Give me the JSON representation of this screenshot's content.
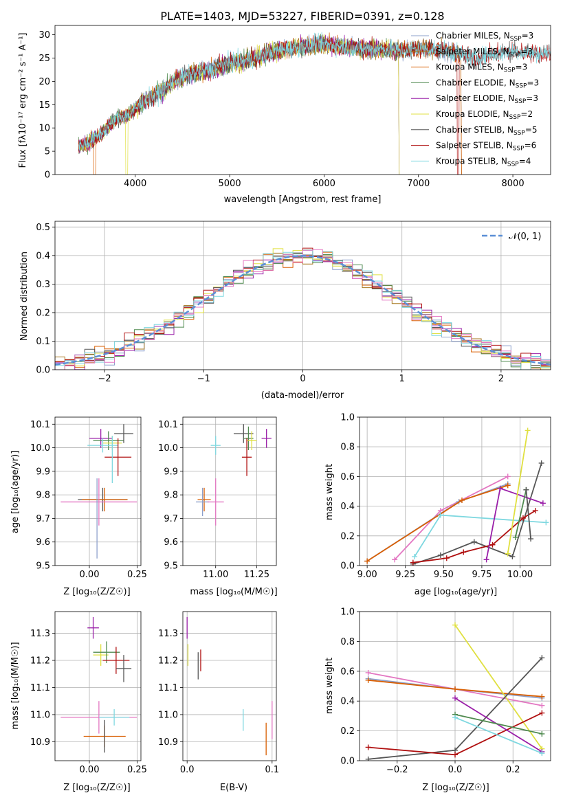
{
  "chart_data": [
    {
      "type": "line",
      "title": "PLATE=1403, MJD=53227, FIBERID=0391, z=0.128",
      "xlabel": "wavelength [Angstrom, rest frame]",
      "ylabel": "Flux [fλ10⁻¹⁷ erg cm⁻² s⁻¹ A⁻¹]",
      "xlim": [
        3150,
        8400
      ],
      "ylim": [
        0,
        32
      ],
      "xticks": [
        4000,
        5000,
        6000,
        7000,
        8000
      ],
      "yticks": [
        0,
        5,
        10,
        15,
        20,
        25,
        30
      ],
      "spectrum_knots": [
        [
          3400,
          6
        ],
        [
          3500,
          6.8
        ],
        [
          3550,
          7.5
        ],
        [
          3650,
          9
        ],
        [
          3800,
          12
        ],
        [
          3950,
          13
        ],
        [
          4000,
          14
        ],
        [
          4100,
          16
        ],
        [
          4200,
          17
        ],
        [
          4300,
          18
        ],
        [
          4400,
          20
        ],
        [
          4600,
          21.5
        ],
        [
          4800,
          22.5
        ],
        [
          5000,
          24
        ],
        [
          5200,
          24.5
        ],
        [
          5400,
          26
        ],
        [
          5600,
          27
        ],
        [
          5800,
          27.5
        ],
        [
          6000,
          28
        ],
        [
          6200,
          27.5
        ],
        [
          6400,
          27
        ],
        [
          6600,
          27
        ],
        [
          6800,
          26.5
        ],
        [
          7000,
          27
        ],
        [
          7200,
          27
        ],
        [
          7400,
          26
        ],
        [
          7600,
          25
        ],
        [
          7800,
          26
        ],
        [
          8000,
          26.5
        ],
        [
          8200,
          26
        ]
      ],
      "series": [
        {
          "name": "Chabrier MILES, N_SSP=3",
          "color": "#8da0cb",
          "xmax": 7450,
          "drop": null
        },
        {
          "name": "Salpeter MILES, N_SSP=3",
          "color": "#a6761d",
          "xmax": 7450,
          "drop": null
        },
        {
          "name": "Kroupa MILES, N_SSP=3",
          "color": "#d95f02",
          "xmax": 7450,
          "drop": [
            3560,
            3580
          ]
        },
        {
          "name": "Chabrier ELODIE, N_SSP=3",
          "color": "#4f8a4f",
          "xmax": 6790,
          "drop": null
        },
        {
          "name": "Salpeter ELODIE, N_SSP=3",
          "color": "#9a1fa8",
          "xmax": 6790,
          "drop": null
        },
        {
          "name": "Kroupa ELODIE, N_SSP=2",
          "color": "#e0e040",
          "xmax": 6790,
          "drop": [
            3900,
            3920
          ]
        },
        {
          "name": "Chabrier STELIB, N_SSP=5",
          "color": "#555555",
          "xmax": 8400,
          "drop": null
        },
        {
          "name": "Salpeter STELIB, N_SSP=6",
          "color": "#b01010",
          "xmax": 8400,
          "drop": [
            7410,
            7430
          ]
        },
        {
          "name": "Kroupa STELIB, N_SSP=4",
          "color": "#7fd8e0",
          "xmax": 8400,
          "drop": null
        }
      ]
    },
    {
      "type": "area",
      "xlabel": "(data-model)/error",
      "ylabel": "Normed distribution",
      "xlim": [
        -2.5,
        2.5
      ],
      "ylim": [
        0,
        0.52
      ],
      "xticks": [
        -2,
        -1,
        0,
        1,
        2
      ],
      "yticks": [
        0.0,
        0.1,
        0.2,
        0.3,
        0.4,
        0.5
      ],
      "bin_width": 0.1,
      "reference_label": "𝒩(0, 1)",
      "reference_color": "#5b8fd6",
      "histogram_colors": [
        "#8da0cb",
        "#a6761d",
        "#d95f02",
        "#4f8a4f",
        "#9a1fa8",
        "#e0e040",
        "#555555",
        "#b01010",
        "#7fd8e0",
        "#e377c2"
      ]
    },
    {
      "type": "scatter",
      "xlabel": "Z [log₁₀(Z/Z☉)]",
      "ylabel": "age  [log₁₀(age/yr)]",
      "xlim": [
        -0.18,
        0.27
      ],
      "ylim": [
        9.5,
        10.13
      ],
      "xticks": [
        0.0,
        0.25
      ],
      "yticks": [
        9.5,
        9.6,
        9.7,
        9.8,
        9.9,
        10.0,
        10.1
      ],
      "points": [
        {
          "x": 0.06,
          "y": 10.04,
          "xerr": 0.06,
          "yerr": 0.04,
          "color": "#9a1fa8"
        },
        {
          "x": 0.1,
          "y": 10.03,
          "xerr": 0.08,
          "yerr": 0.04,
          "color": "#4f8a4f"
        },
        {
          "x": 0.12,
          "y": 10.02,
          "xerr": 0.05,
          "yerr": 0.03,
          "color": "#e0e040"
        },
        {
          "x": 0.18,
          "y": 10.06,
          "xerr": 0.05,
          "yerr": 0.04,
          "color": "#555555"
        },
        {
          "x": 0.07,
          "y": 10.01,
          "xerr": 0.08,
          "yerr": 0.03,
          "color": "#7fd8e0"
        },
        {
          "x": 0.15,
          "y": 9.96,
          "xerr": 0.07,
          "yerr": 0.08,
          "color": "#b01010"
        },
        {
          "x": 0.12,
          "y": 9.95,
          "xerr": 0.0,
          "yerr": 0.1,
          "color": "#7fd8e0"
        },
        {
          "x": 0.07,
          "y": 9.78,
          "xerr": 0.13,
          "yerr": 0.05,
          "color": "#555555"
        },
        {
          "x": 0.08,
          "y": 9.78,
          "xerr": 0.12,
          "yerr": 0.05,
          "color": "#d95f02"
        },
        {
          "x": 0.05,
          "y": 9.77,
          "xerr": 0.2,
          "yerr": 0.1,
          "color": "#e377c2"
        },
        {
          "x": 0.04,
          "y": 9.7,
          "xerr": 0.0,
          "yerr": 0.17,
          "color": "#8da0cb"
        }
      ]
    },
    {
      "type": "scatter",
      "xlabel": "mass [log₁₀(M/M☉)]",
      "ylabel": "",
      "xlim": [
        10.8,
        11.37
      ],
      "ylim": [
        9.5,
        10.13
      ],
      "xticks": [
        11.0,
        11.25
      ],
      "yticks": [
        9.5,
        9.6,
        9.7,
        9.8,
        9.9,
        10.0,
        10.1
      ],
      "points": [
        {
          "x": 11.17,
          "y": 10.06,
          "xerr": 0.06,
          "yerr": 0.04,
          "color": "#555555"
        },
        {
          "x": 11.2,
          "y": 10.04,
          "xerr": 0.03,
          "yerr": 0.05,
          "color": "#4f8a4f"
        },
        {
          "x": 11.22,
          "y": 10.03,
          "xerr": 0.03,
          "yerr": 0.04,
          "color": "#e0e040"
        },
        {
          "x": 11.31,
          "y": 10.04,
          "xerr": 0.03,
          "yerr": 0.04,
          "color": "#9a1fa8"
        },
        {
          "x": 11.0,
          "y": 10.01,
          "xerr": 0.03,
          "yerr": 0.04,
          "color": "#7fd8e0"
        },
        {
          "x": 11.19,
          "y": 9.96,
          "xerr": 0.03,
          "yerr": 0.08,
          "color": "#b01010"
        },
        {
          "x": 10.93,
          "y": 9.78,
          "xerr": 0.04,
          "yerr": 0.05,
          "color": "#d95f02"
        },
        {
          "x": 10.92,
          "y": 9.77,
          "xerr": 0.04,
          "yerr": 0.06,
          "color": "#8da0cb"
        },
        {
          "x": 11.0,
          "y": 9.77,
          "xerr": 0.05,
          "yerr": 0.1,
          "color": "#e377c2"
        }
      ]
    },
    {
      "type": "line",
      "xlabel": "age  [log₁₀(age/yr)]",
      "ylabel": "mass weight",
      "xlim": [
        8.95,
        10.2
      ],
      "ylim": [
        0,
        1.0
      ],
      "xticks": [
        9.0,
        9.25,
        9.5,
        9.75,
        10.0
      ],
      "yticks": [
        0.0,
        0.2,
        0.4,
        0.6,
        0.8,
        1.0
      ],
      "series": [
        {
          "color": "#e377c2",
          "x": [
            9.18,
            9.48,
            9.92
          ],
          "y": [
            0.04,
            0.37,
            0.6
          ]
        },
        {
          "color": "#8da0cb",
          "x": [
            9.0,
            9.6,
            9.92
          ],
          "y": [
            0.03,
            0.43,
            0.55
          ]
        },
        {
          "color": "#d95f02",
          "x": [
            9.0,
            9.62,
            9.92
          ],
          "y": [
            0.03,
            0.44,
            0.54
          ]
        },
        {
          "color": "#7fd8e0",
          "x": [
            9.31,
            9.48,
            10.17
          ],
          "y": [
            0.06,
            0.34,
            0.29
          ]
        },
        {
          "color": "#555555",
          "x": [
            9.3,
            9.48,
            9.7,
            9.95,
            10.14
          ],
          "y": [
            0.01,
            0.07,
            0.16,
            0.06,
            0.69
          ]
        },
        {
          "color": "#b01010",
          "x": [
            9.3,
            9.52,
            9.63,
            9.82,
            10.02,
            10.1
          ],
          "y": [
            0.02,
            0.05,
            0.09,
            0.14,
            0.32,
            0.37
          ]
        },
        {
          "color": "#9a1fa8",
          "x": [
            9.78,
            9.87,
            10.15
          ],
          "y": [
            0.04,
            0.52,
            0.42
          ]
        },
        {
          "color": "#e0e040",
          "x": [
            9.92,
            10.05
          ],
          "y": [
            0.08,
            0.91
          ]
        },
        {
          "color": "#4f8a4f",
          "x": [
            9.97,
            10.04
          ],
          "y": [
            0.19,
            0.51
          ]
        },
        {
          "color": "#555555",
          "x": [
            10.04,
            10.07
          ],
          "y": [
            0.51,
            0.18
          ]
        }
      ]
    },
    {
      "type": "scatter",
      "xlabel": "Z [log₁₀(Z/Z☉)]",
      "ylabel": "mass [log₁₀(M/M☉)]",
      "xlim": [
        -0.18,
        0.27
      ],
      "ylim": [
        10.83,
        11.38
      ],
      "xticks": [
        0.0,
        0.25
      ],
      "yticks": [
        10.9,
        11.0,
        11.1,
        11.2,
        11.3
      ],
      "points": [
        {
          "x": 0.02,
          "y": 11.32,
          "xerr": 0.03,
          "yerr": 0.04,
          "color": "#9a1fa8"
        },
        {
          "x": 0.06,
          "y": 11.22,
          "xerr": 0.04,
          "yerr": 0.04,
          "color": "#e0e040"
        },
        {
          "x": 0.09,
          "y": 11.23,
          "xerr": 0.07,
          "yerr": 0.04,
          "color": "#4f8a4f"
        },
        {
          "x": 0.14,
          "y": 11.2,
          "xerr": 0.07,
          "yerr": 0.05,
          "color": "#b01010"
        },
        {
          "x": 0.18,
          "y": 11.17,
          "xerr": 0.04,
          "yerr": 0.05,
          "color": "#555555"
        },
        {
          "x": 0.05,
          "y": 10.99,
          "xerr": 0.2,
          "yerr": 0.06,
          "color": "#e377c2"
        },
        {
          "x": 0.13,
          "y": 10.99,
          "xerr": 0.08,
          "yerr": 0.03,
          "color": "#7fd8e0"
        },
        {
          "x": 0.08,
          "y": 10.92,
          "xerr": 0.11,
          "yerr": 0.04,
          "color": "#d95f02"
        },
        {
          "x": 0.08,
          "y": 10.92,
          "xerr": 0.0,
          "yerr": 0.06,
          "color": "#555555"
        }
      ]
    },
    {
      "type": "scatter",
      "xlabel": "E(B-V)",
      "ylabel": "",
      "xlim": [
        -0.005,
        0.105
      ],
      "ylim": [
        10.83,
        11.38
      ],
      "xticks": [
        0.0,
        0.1
      ],
      "yticks": [
        10.9,
        11.0,
        11.1,
        11.2,
        11.3
      ],
      "points": [
        {
          "x": 0.0,
          "y": 11.32,
          "xerr": 0,
          "yerr": 0.04,
          "color": "#9a1fa8"
        },
        {
          "x": 0.001,
          "y": 11.22,
          "xerr": 0,
          "yerr": 0.04,
          "color": "#e0e040"
        },
        {
          "x": 0.013,
          "y": 11.18,
          "xerr": 0,
          "yerr": 0.05,
          "color": "#555555"
        },
        {
          "x": 0.016,
          "y": 11.2,
          "xerr": 0,
          "yerr": 0.04,
          "color": "#b01010"
        },
        {
          "x": 0.066,
          "y": 10.98,
          "xerr": 0,
          "yerr": 0.04,
          "color": "#7fd8e0"
        },
        {
          "x": 0.093,
          "y": 10.91,
          "xerr": 0,
          "yerr": 0.06,
          "color": "#d95f02"
        },
        {
          "x": 0.1,
          "y": 10.98,
          "xerr": 0,
          "yerr": 0.07,
          "color": "#e377c2"
        }
      ]
    },
    {
      "type": "line",
      "xlabel": "Z [log₁₀(Z/Z☉)]",
      "ylabel": "mass weight",
      "xlim": [
        -0.33,
        0.33
      ],
      "ylim": [
        0,
        1.0
      ],
      "xticks": [
        -0.2,
        0.0,
        0.2
      ],
      "yticks": [
        0.0,
        0.2,
        0.4,
        0.6,
        0.8,
        1.0
      ],
      "series": [
        {
          "color": "#e377c2",
          "x": [
            -0.3,
            0.0,
            0.3
          ],
          "y": [
            0.59,
            0.48,
            0.37
          ]
        },
        {
          "color": "#8da0cb",
          "x": [
            -0.3,
            0.0,
            0.3
          ],
          "y": [
            0.55,
            0.48,
            0.42
          ]
        },
        {
          "color": "#d95f02",
          "x": [
            -0.3,
            0.0,
            0.3
          ],
          "y": [
            0.54,
            0.48,
            0.43
          ]
        },
        {
          "color": "#e0e040",
          "x": [
            0.0,
            0.3
          ],
          "y": [
            0.91,
            0.08
          ]
        },
        {
          "color": "#555555",
          "x": [
            -0.3,
            0.0,
            0.3
          ],
          "y": [
            0.01,
            0.07,
            0.69
          ]
        },
        {
          "color": "#b01010",
          "x": [
            -0.3,
            0.0,
            0.3
          ],
          "y": [
            0.09,
            0.04,
            0.32
          ]
        },
        {
          "color": "#9a1fa8",
          "x": [
            0.0,
            0.3
          ],
          "y": [
            0.42,
            0.06
          ]
        },
        {
          "color": "#4f8a4f",
          "x": [
            0.0,
            0.3
          ],
          "y": [
            0.31,
            0.18
          ]
        },
        {
          "color": "#7fd8e0",
          "x": [
            0.0,
            0.3
          ],
          "y": [
            0.29,
            0.05
          ]
        }
      ]
    }
  ]
}
